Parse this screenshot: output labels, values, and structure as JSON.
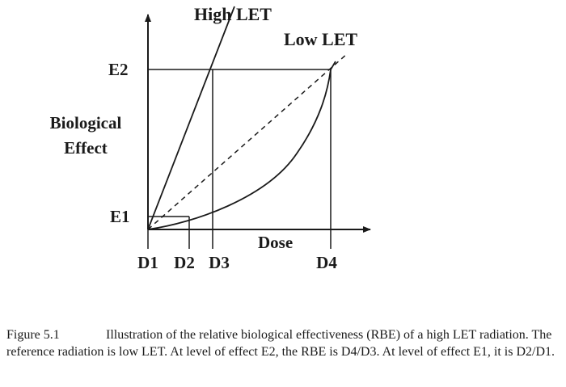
{
  "diagram": {
    "labels": {
      "high_let": "High LET",
      "low_let": "Low LET",
      "e2": "E2",
      "e1": "E1",
      "y_axis_line1": "Biological",
      "y_axis_line2": "Effect",
      "x_axis": "Dose",
      "d1": "D1",
      "d2": "D2",
      "d3": "D3",
      "d4": "D4"
    }
  },
  "caption": {
    "figure_number": "Figure 5.1",
    "text": "Illustration of the relative biological effectiveness (RBE) of a high LET radiation.  The reference radiation is low LET.  At level of effect E2, the RBE is D4/D3.  At level of effect E1, it is D2/D1."
  }
}
